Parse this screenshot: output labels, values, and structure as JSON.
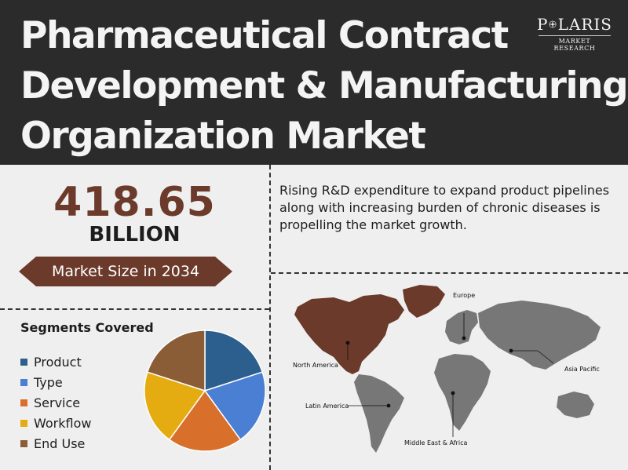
{
  "header": {
    "title_lines": [
      "Pharmaceutical Contract",
      "Development & Manufacturing",
      "Organization Market"
    ]
  },
  "logo": {
    "name": "POLARIS",
    "subtitle": "MARKET RESEARCH",
    "icon": "compass-star-icon"
  },
  "kpi": {
    "value": "418.65",
    "unit": "BILLION",
    "label": "Market Size in 2034"
  },
  "description": "Rising R&D expenditure to expand product pipelines along with increasing burden of chronic diseases is propelling the market growth.",
  "segments": {
    "title": "Segments Covered",
    "items": [
      {
        "label": "Product",
        "color": "#2c5f8e"
      },
      {
        "label": "Type",
        "color": "#4a7fd4"
      },
      {
        "label": "Service",
        "color": "#d8702c"
      },
      {
        "label": "Workflow",
        "color": "#e4ac10"
      },
      {
        "label": "End Use",
        "color": "#8b5d36"
      }
    ],
    "shares": [
      0.2,
      0.2,
      0.2,
      0.2,
      0.2
    ]
  },
  "map": {
    "regions": [
      "North America",
      "Europe",
      "Asia Pacific",
      "Latin America",
      "Middle East & Africa"
    ],
    "highlight_color": "#6b3a2a",
    "base_color": "#777777"
  }
}
